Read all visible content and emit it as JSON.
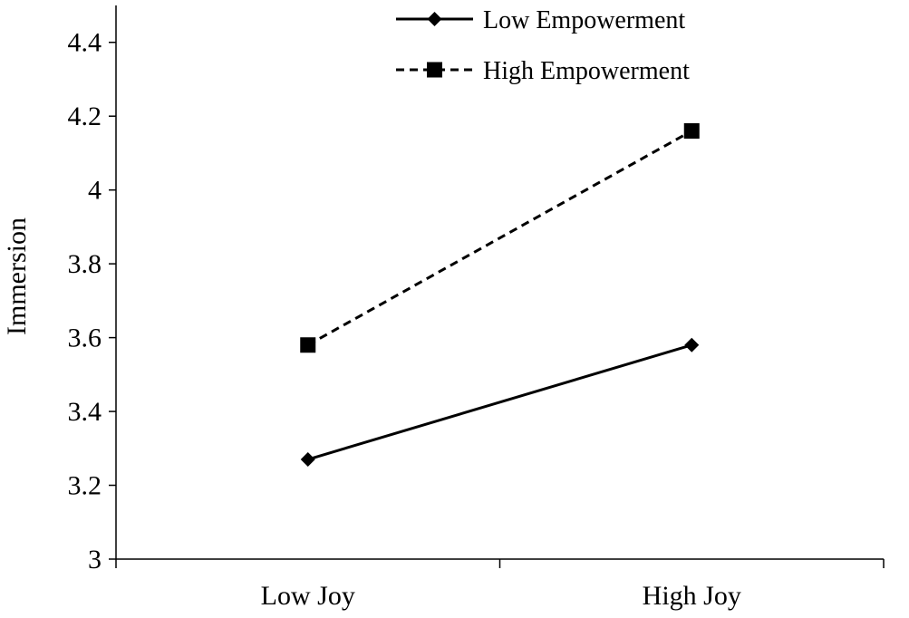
{
  "chart_data": {
    "type": "line",
    "categories": [
      "Low Joy",
      "High Joy"
    ],
    "series": [
      {
        "name": "Low Empowerment",
        "values": [
          3.27,
          3.58
        ],
        "line_style": "solid",
        "marker": "diamond",
        "color": "#000000"
      },
      {
        "name": "High Empowerment",
        "values": [
          3.58,
          4.16
        ],
        "line_style": "dashed",
        "marker": "square",
        "color": "#000000"
      }
    ],
    "title": "",
    "xlabel": "",
    "ylabel": "Immersion",
    "ylim": [
      3,
      4.5
    ],
    "yticks": [
      "3",
      "3.2",
      "3.4",
      "3.6",
      "3.8",
      "4",
      "4.2",
      "4.4"
    ],
    "grid": false,
    "legend_position": "top-right"
  }
}
